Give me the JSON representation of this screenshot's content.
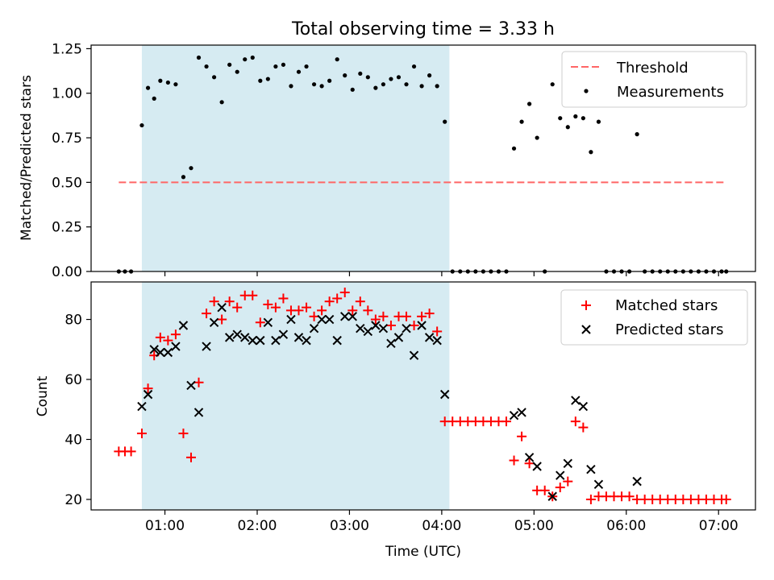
{
  "chart_data": [
    {
      "type": "scatter",
      "title": "Total observing time = 3.33 h",
      "ylabel": "Matched/Predicted stars",
      "xlabel": "",
      "xlim": [
        "00:12",
        "07:24"
      ],
      "ylim": [
        0,
        1.27
      ],
      "x_ticks": [
        "01:00",
        "02:00",
        "03:00",
        "04:00",
        "05:00",
        "06:00",
        "07:00"
      ],
      "x_tick_labels_shown": false,
      "y_ticks": [
        "0.00",
        "0.25",
        "0.50",
        "0.75",
        "1.00",
        "1.25"
      ],
      "grid": false,
      "legend_location": "upper right",
      "shaded_span": {
        "x_start": "00:45",
        "x_end": "04:05",
        "color": "#add8e6"
      },
      "threshold": {
        "name": "Threshold",
        "y": 0.5,
        "x_start": "00:30",
        "x_end": "07:05",
        "color": "#ff6666",
        "style": "dashed"
      },
      "series": [
        {
          "name": "Measurements",
          "marker": "dot",
          "color": "#000000",
          "x": [
            "00:30",
            "00:34",
            "00:38",
            "00:45",
            "00:49",
            "00:53",
            "00:57",
            "01:02",
            "01:07",
            "01:12",
            "01:17",
            "01:22",
            "01:27",
            "01:32",
            "01:37",
            "01:42",
            "01:47",
            "01:52",
            "01:57",
            "02:02",
            "02:07",
            "02:12",
            "02:17",
            "02:22",
            "02:27",
            "02:32",
            "02:37",
            "02:42",
            "02:47",
            "02:52",
            "02:57",
            "03:02",
            "03:07",
            "03:12",
            "03:17",
            "03:22",
            "03:27",
            "03:32",
            "03:37",
            "03:42",
            "03:47",
            "03:52",
            "03:57",
            "04:02",
            "04:07",
            "04:12",
            "04:17",
            "04:22",
            "04:27",
            "04:32",
            "04:37",
            "04:42",
            "04:47",
            "04:52",
            "04:57",
            "05:02",
            "05:07",
            "05:12",
            "05:17",
            "05:22",
            "05:27",
            "05:32",
            "05:37",
            "05:42",
            "05:47",
            "05:52",
            "05:57",
            "06:02",
            "06:07",
            "06:12",
            "06:17",
            "06:22",
            "06:27",
            "06:32",
            "06:37",
            "06:42",
            "06:47",
            "06:52",
            "06:57",
            "07:02",
            "07:05"
          ],
          "y": [
            0,
            0,
            0,
            0.82,
            1.03,
            0.97,
            1.07,
            1.06,
            1.05,
            0.53,
            0.58,
            1.2,
            1.15,
            1.09,
            0.95,
            1.16,
            1.12,
            1.19,
            1.2,
            1.07,
            1.08,
            1.15,
            1.16,
            1.04,
            1.12,
            1.15,
            1.05,
            1.04,
            1.07,
            1.19,
            1.1,
            1.02,
            1.11,
            1.09,
            1.03,
            1.05,
            1.08,
            1.09,
            1.05,
            1.15,
            1.04,
            1.1,
            1.04,
            0.84,
            0,
            0,
            0,
            0,
            0,
            0,
            0,
            0,
            0.69,
            0.84,
            0.94,
            0.75,
            0,
            1.05,
            0.86,
            0.81,
            0.87,
            0.86,
            0.67,
            0.84,
            0,
            0,
            0,
            0,
            0.77,
            0,
            0,
            0,
            0,
            0,
            0,
            0,
            0,
            0,
            0,
            0,
            0
          ]
        }
      ]
    },
    {
      "type": "scatter",
      "title": "",
      "xlabel": "Time (UTC)",
      "ylabel": "Count",
      "xlim": [
        "00:12",
        "07:24"
      ],
      "ylim": [
        16.5,
        92.5
      ],
      "x_ticks": [
        "01:00",
        "02:00",
        "03:00",
        "04:00",
        "05:00",
        "06:00",
        "07:00"
      ],
      "y_ticks": [
        "20",
        "40",
        "60",
        "80"
      ],
      "grid": false,
      "legend_location": "upper right",
      "shaded_span": {
        "x_start": "00:45",
        "x_end": "04:05",
        "color": "#add8e6"
      },
      "series": [
        {
          "name": "Matched stars",
          "marker": "plus",
          "color": "#ff0000",
          "x": [
            "00:30",
            "00:34",
            "00:38",
            "00:45",
            "00:49",
            "00:53",
            "00:57",
            "01:02",
            "01:07",
            "01:12",
            "01:17",
            "01:22",
            "01:27",
            "01:32",
            "01:37",
            "01:42",
            "01:47",
            "01:52",
            "01:57",
            "02:02",
            "02:07",
            "02:12",
            "02:17",
            "02:22",
            "02:27",
            "02:32",
            "02:37",
            "02:42",
            "02:47",
            "02:52",
            "02:57",
            "03:02",
            "03:07",
            "03:12",
            "03:17",
            "03:22",
            "03:27",
            "03:32",
            "03:37",
            "03:42",
            "03:47",
            "03:52",
            "03:57",
            "04:02",
            "04:07",
            "04:12",
            "04:17",
            "04:22",
            "04:27",
            "04:32",
            "04:37",
            "04:42",
            "04:47",
            "04:52",
            "04:57",
            "05:02",
            "05:07",
            "05:12",
            "05:17",
            "05:22",
            "05:27",
            "05:32",
            "05:37",
            "05:42",
            "05:47",
            "05:52",
            "05:57",
            "06:02",
            "06:07",
            "06:12",
            "06:17",
            "06:22",
            "06:27",
            "06:32",
            "06:37",
            "06:42",
            "06:47",
            "06:52",
            "06:57",
            "07:02",
            "07:05"
          ],
          "y": [
            36,
            36,
            36,
            42,
            57,
            68,
            74,
            73,
            75,
            42,
            34,
            59,
            82,
            86,
            80,
            86,
            84,
            88,
            88,
            79,
            85,
            84,
            87,
            83,
            83,
            84,
            81,
            83,
            86,
            87,
            89,
            83,
            86,
            83,
            80,
            81,
            78,
            81,
            81,
            78,
            81,
            82,
            76,
            46,
            46,
            46,
            46,
            46,
            46,
            46,
            46,
            46,
            33,
            41,
            32,
            23,
            23,
            21,
            24,
            26,
            46,
            44,
            20,
            21,
            21,
            21,
            21,
            21,
            20,
            20,
            20,
            20,
            20,
            20,
            20,
            20,
            20,
            20,
            20,
            20,
            20
          ]
        },
        {
          "name": "Predicted stars",
          "marker": "x",
          "color": "#000000",
          "x": [
            "00:45",
            "00:49",
            "00:53",
            "00:57",
            "01:02",
            "01:07",
            "01:12",
            "01:17",
            "01:22",
            "01:27",
            "01:32",
            "01:37",
            "01:42",
            "01:47",
            "01:52",
            "01:57",
            "02:02",
            "02:07",
            "02:12",
            "02:17",
            "02:22",
            "02:27",
            "02:32",
            "02:37",
            "02:42",
            "02:47",
            "02:52",
            "02:57",
            "03:02",
            "03:07",
            "03:12",
            "03:17",
            "03:22",
            "03:27",
            "03:32",
            "03:37",
            "03:42",
            "03:47",
            "03:52",
            "03:57",
            "04:02",
            "04:47",
            "04:52",
            "04:57",
            "05:02",
            "05:12",
            "05:17",
            "05:22",
            "05:27",
            "05:32",
            "05:37",
            "05:42",
            "06:07"
          ],
          "y": [
            51,
            55,
            70,
            69,
            69,
            71,
            78,
            58,
            49,
            71,
            79,
            84,
            74,
            75,
            74,
            73,
            73,
            79,
            73,
            75,
            80,
            74,
            73,
            77,
            80,
            80,
            73,
            81,
            81,
            77,
            76,
            78,
            77,
            72,
            74,
            77,
            68,
            78,
            74,
            73,
            55,
            48,
            49,
            34,
            31,
            21,
            28,
            32,
            53,
            51,
            30,
            25,
            26
          ]
        }
      ]
    }
  ],
  "legend": [
    {
      "items": [
        {
          "label": "Threshold",
          "color": "#ff6666"
        },
        {
          "label": "Measurements",
          "color": "#000000"
        }
      ]
    },
    {
      "items": [
        {
          "label": "Matched stars",
          "color": "#ff0000"
        },
        {
          "label": "Predicted stars",
          "color": "#000000"
        }
      ]
    }
  ]
}
